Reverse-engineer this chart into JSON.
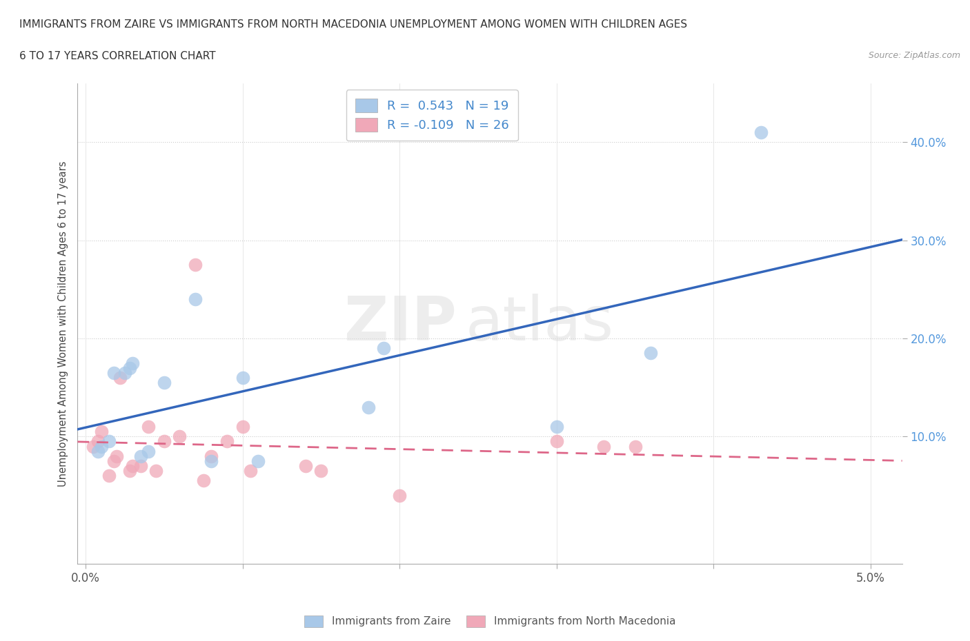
{
  "title_line1": "IMMIGRANTS FROM ZAIRE VS IMMIGRANTS FROM NORTH MACEDONIA UNEMPLOYMENT AMONG WOMEN WITH CHILDREN AGES",
  "title_line2": "6 TO 17 YEARS CORRELATION CHART",
  "source": "Source: ZipAtlas.com",
  "ylabel": "Unemployment Among Women with Children Ages 6 to 17 years",
  "xlim": [
    -0.0005,
    0.052
  ],
  "ylim": [
    -0.03,
    0.46
  ],
  "xtick_positions": [
    0.0,
    0.01,
    0.02,
    0.03,
    0.04,
    0.05
  ],
  "xticklabels": [
    "0.0%",
    "",
    "",
    "",
    "",
    "5.0%"
  ],
  "ytick_positions": [
    0.1,
    0.2,
    0.3,
    0.4
  ],
  "yticklabels": [
    "10.0%",
    "20.0%",
    "30.0%",
    "40.0%"
  ],
  "zaire_color": "#A8C8E8",
  "macedonia_color": "#F0A8B8",
  "zaire_line_color": "#3366BB",
  "macedonia_line_color": "#DD6688",
  "R_zaire": 0.543,
  "N_zaire": 19,
  "R_macedonia": -0.109,
  "N_macedonia": 26,
  "watermark_zip": "ZIP",
  "watermark_atlas": "atlas",
  "zaire_x": [
    0.0008,
    0.001,
    0.0015,
    0.0018,
    0.0025,
    0.0028,
    0.003,
    0.0035,
    0.004,
    0.005,
    0.007,
    0.008,
    0.01,
    0.011,
    0.018,
    0.019,
    0.03,
    0.036,
    0.043
  ],
  "zaire_y": [
    0.085,
    0.09,
    0.095,
    0.165,
    0.165,
    0.17,
    0.175,
    0.08,
    0.085,
    0.155,
    0.24,
    0.075,
    0.16,
    0.075,
    0.13,
    0.19,
    0.11,
    0.185,
    0.41
  ],
  "macedonia_x": [
    0.0005,
    0.0008,
    0.001,
    0.0015,
    0.0018,
    0.002,
    0.0022,
    0.0028,
    0.003,
    0.0035,
    0.004,
    0.0045,
    0.005,
    0.006,
    0.007,
    0.0075,
    0.008,
    0.009,
    0.01,
    0.0105,
    0.014,
    0.015,
    0.02,
    0.03,
    0.033,
    0.035
  ],
  "macedonia_y": [
    0.09,
    0.095,
    0.105,
    0.06,
    0.075,
    0.08,
    0.16,
    0.065,
    0.07,
    0.07,
    0.11,
    0.065,
    0.095,
    0.1,
    0.275,
    0.055,
    0.08,
    0.095,
    0.11,
    0.065,
    0.07,
    0.065,
    0.04,
    0.095,
    0.09,
    0.09
  ],
  "legend_label_zaire": "Immigrants from Zaire",
  "legend_label_macedonia": "Immigrants from North Macedonia",
  "background_color": "#FFFFFF",
  "grid_color": "#DDDDDD",
  "grid_dotted_color": "#CCCCCC"
}
